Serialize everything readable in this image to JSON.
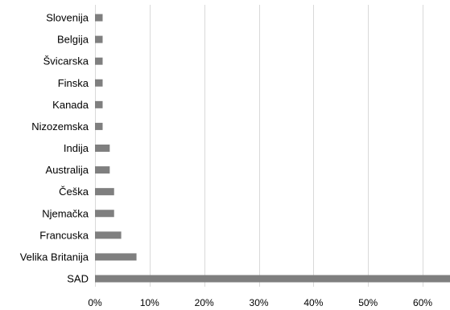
{
  "chart_data": {
    "type": "bar",
    "orientation": "horizontal",
    "title": "",
    "xlabel": "",
    "ylabel": "",
    "categories": [
      "Slovenija",
      "Belgija",
      "Švicarska",
      "Finska",
      "Kanada",
      "Nizozemska",
      "Indija",
      "Australija",
      "Češka",
      "Njemačka",
      "Francuska",
      "Velika Britanija",
      "SAD"
    ],
    "values": [
      1.4,
      1.4,
      1.4,
      1.4,
      1.4,
      1.4,
      2.7,
      2.7,
      3.5,
      3.5,
      4.8,
      7.6,
      65.0
    ],
    "xlim": [
      0,
      65
    ],
    "x_ticks": [
      0,
      10,
      20,
      30,
      40,
      50,
      60
    ],
    "x_tick_labels": [
      "0%",
      "10%",
      "20%",
      "30%",
      "40%",
      "50%",
      "60%"
    ],
    "grid": "vertical",
    "legend": "none",
    "bar_color": "#7f7f7f",
    "grid_color": "#d9d9d9"
  }
}
